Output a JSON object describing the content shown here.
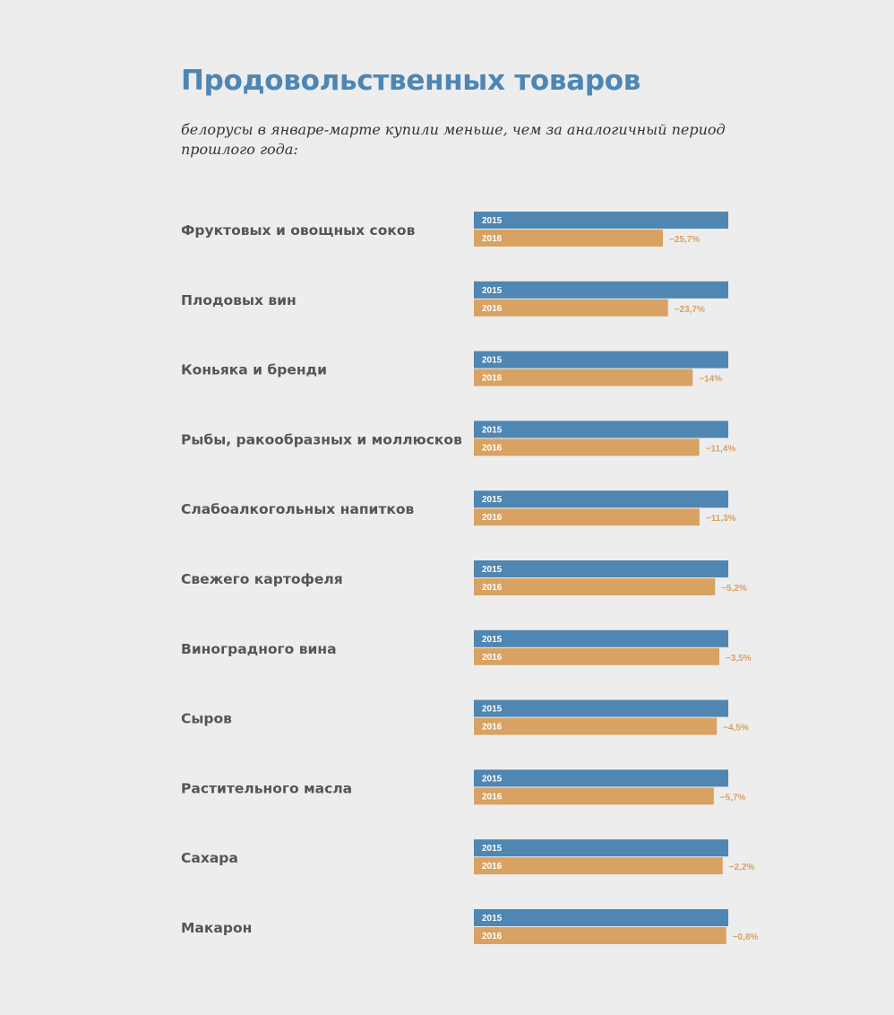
{
  "colors": {
    "background": "#ededed",
    "title": "#4d86b4",
    "label": "#555555",
    "bar_2015": "#4f86b2",
    "bar_2016": "#d8a262",
    "change_text": "#d8a262"
  },
  "chart_data": {
    "type": "bar",
    "orientation": "horizontal",
    "title": "Продовольственных товаров",
    "subtitle": "белорусы в январе-марте купили меньше, чем за аналогичный период прошлого года:",
    "xlabel": "",
    "ylabel": "",
    "grid": false,
    "legend": "none",
    "baseline": 100,
    "categories": [
      "Фруктовых и овощных соков",
      "Плодовых вин",
      "Коньяка и бренди",
      "Рыбы, ракообразных и моллюсков",
      "Слабоалкогольных напитков",
      "Свежего картофеля",
      "Виноградного вина",
      "Сыров",
      "Растительного масла",
      "Сахара",
      "Макарон"
    ],
    "series": [
      {
        "name": "2015",
        "values": [
          100,
          100,
          100,
          100,
          100,
          100,
          100,
          100,
          100,
          100,
          100
        ]
      },
      {
        "name": "2016",
        "values": [
          74.3,
          76.3,
          86,
          88.6,
          88.7,
          94.8,
          96.5,
          95.5,
          94.3,
          97.8,
          99.2
        ]
      }
    ],
    "change_labels": [
      "−25,7%",
      "−23,7%",
      "−14%",
      "−11,4%",
      "−11,3%",
      "−5,2%",
      "−3,5%",
      "−4,5%",
      "−5,7%",
      "−2,2%",
      "−0,8%"
    ]
  }
}
